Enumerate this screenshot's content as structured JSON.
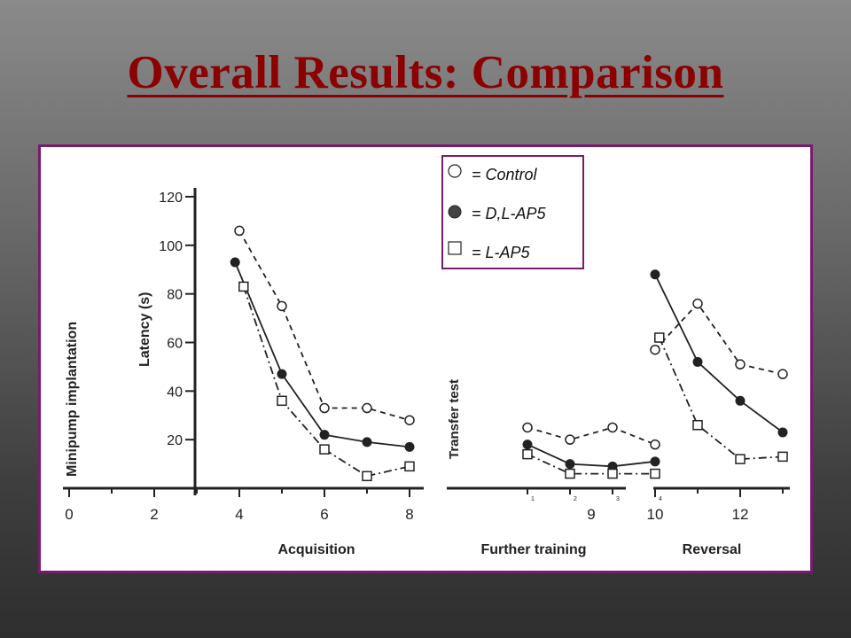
{
  "slide": {
    "title": "Overall Results: Comparison"
  },
  "chart_data": {
    "type": "line",
    "ylabel": "Latency (s)",
    "ylim": [
      0,
      120
    ],
    "yticks": [
      20,
      40,
      60,
      80,
      100,
      120
    ],
    "xlim": [
      0,
      13
    ],
    "xticks": [
      "0",
      "2",
      "4",
      "6",
      "8",
      "9",
      "10",
      "12"
    ],
    "phase_labels": [
      "Acquisition",
      "Further training",
      "Reversal"
    ],
    "annotations": [
      "Minipump implantation",
      "Transfer test"
    ],
    "sub_ticks": [
      "1",
      "2",
      "3",
      "4"
    ],
    "legend": {
      "position": "top-center",
      "entries": [
        {
          "marker": "open-circle",
          "label": "= Control"
        },
        {
          "marker": "filled-circle",
          "label": "= D,L-AP5"
        },
        {
          "marker": "open-square",
          "label": "= L-AP5"
        }
      ]
    },
    "series": [
      {
        "key": "control",
        "marker": "open-circle",
        "line_style": "dashed",
        "segments": [
          {
            "phase": "Acquisition",
            "points": [
              [
                4,
                106
              ],
              [
                5,
                75
              ],
              [
                6,
                33
              ],
              [
                7,
                33
              ],
              [
                8,
                28
              ]
            ]
          },
          {
            "phase": "Further training",
            "points": [
              [
                1,
                25
              ],
              [
                2,
                20
              ],
              [
                3,
                25
              ],
              [
                4,
                18
              ]
            ]
          },
          {
            "phase": "Reversal",
            "points": [
              [
                10,
                57
              ],
              [
                11,
                76
              ],
              [
                12,
                51
              ],
              [
                13,
                47
              ]
            ]
          }
        ]
      },
      {
        "key": "dl_ap5",
        "marker": "filled-circle",
        "line_style": "solid",
        "segments": [
          {
            "phase": "Acquisition",
            "points": [
              [
                3.9,
                93
              ],
              [
                5,
                47
              ],
              [
                6,
                22
              ],
              [
                7,
                19
              ],
              [
                8,
                17
              ]
            ]
          },
          {
            "phase": "Further training",
            "points": [
              [
                1,
                18
              ],
              [
                2,
                10
              ],
              [
                3,
                9
              ],
              [
                4,
                11
              ]
            ]
          },
          {
            "phase": "Reversal",
            "points": [
              [
                10,
                88
              ],
              [
                11,
                52
              ],
              [
                12,
                36
              ],
              [
                13,
                23
              ]
            ]
          }
        ]
      },
      {
        "key": "l_ap5",
        "marker": "open-square",
        "line_style": "dash-dot",
        "segments": [
          {
            "phase": "Acquisition",
            "points": [
              [
                4.1,
                83
              ],
              [
                5,
                36
              ],
              [
                6,
                16
              ],
              [
                7,
                5
              ],
              [
                8,
                9
              ]
            ]
          },
          {
            "phase": "Further training",
            "points": [
              [
                1,
                14
              ],
              [
                2,
                6
              ],
              [
                3,
                6
              ],
              [
                4,
                6
              ]
            ]
          },
          {
            "phase": "Reversal",
            "points": [
              [
                10.1,
                62
              ],
              [
                11,
                26
              ],
              [
                12,
                12
              ],
              [
                13,
                13
              ]
            ]
          }
        ]
      }
    ]
  }
}
